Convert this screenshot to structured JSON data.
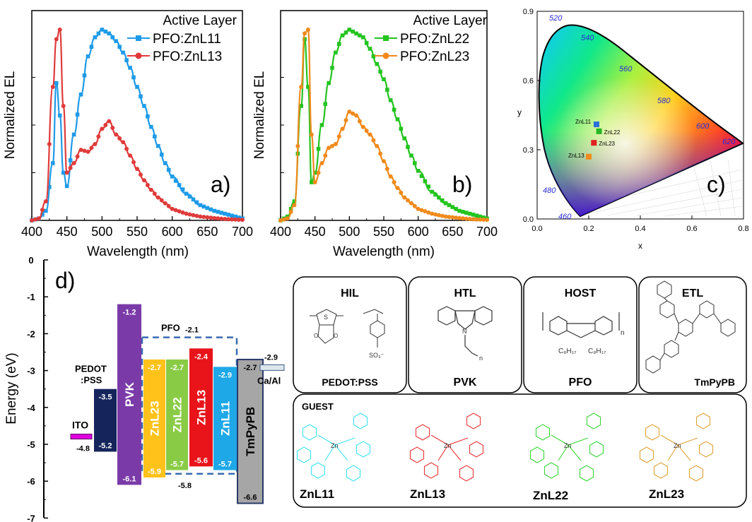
{
  "chart_data": [
    {
      "panel": "a)",
      "type": "line",
      "ylabel": "Normalized EL",
      "xlabel": "Wavelength (nm)",
      "xlim": [
        400,
        700
      ],
      "xticks": [
        "400",
        "450",
        "500",
        "550",
        "600",
        "650",
        "700"
      ],
      "legend_title": "Active Layer",
      "legend_position": "top-right",
      "x": [
        400,
        410,
        420,
        430,
        435,
        440,
        445,
        450,
        460,
        470,
        480,
        490,
        500,
        510,
        520,
        530,
        540,
        550,
        560,
        570,
        580,
        590,
        600,
        620,
        640,
        660,
        680,
        700
      ],
      "series": [
        {
          "name": "PFO:ZnL11",
          "color": "#1e9be8",
          "marker": "square",
          "values": [
            0.0,
            0.01,
            0.05,
            0.3,
            0.72,
            0.55,
            0.25,
            0.18,
            0.45,
            0.66,
            0.86,
            0.96,
            1.0,
            0.98,
            0.94,
            0.88,
            0.8,
            0.7,
            0.6,
            0.49,
            0.39,
            0.3,
            0.23,
            0.14,
            0.08,
            0.05,
            0.03,
            0.01
          ]
        },
        {
          "name": "PFO:ZnL13",
          "color": "#e03b3b",
          "marker": "circle",
          "values": [
            0.0,
            0.01,
            0.1,
            0.7,
            0.95,
            1.0,
            0.6,
            0.25,
            0.3,
            0.37,
            0.36,
            0.4,
            0.48,
            0.52,
            0.45,
            0.41,
            0.34,
            0.27,
            0.21,
            0.16,
            0.12,
            0.09,
            0.06,
            0.035,
            0.02,
            0.012,
            0.006,
            0.003
          ]
        }
      ]
    },
    {
      "panel": "b)",
      "type": "line",
      "ylabel": "Normalized EL",
      "xlabel": "Wavelength (nm)",
      "xlim": [
        400,
        700
      ],
      "xticks": [
        "400",
        "450",
        "500",
        "550",
        "600",
        "650",
        "700"
      ],
      "legend_title": "Active Layer",
      "legend_position": "top-right",
      "x": [
        400,
        410,
        420,
        430,
        435,
        440,
        445,
        450,
        460,
        470,
        480,
        490,
        500,
        510,
        520,
        530,
        540,
        550,
        560,
        570,
        580,
        590,
        600,
        620,
        640,
        660,
        680,
        700
      ],
      "series": [
        {
          "name": "PFO:ZnL22",
          "color": "#23c41f",
          "marker": "square",
          "values": [
            0.0,
            0.02,
            0.1,
            0.6,
            0.95,
            0.7,
            0.2,
            0.25,
            0.5,
            0.72,
            0.88,
            0.97,
            1.0,
            0.98,
            0.96,
            0.9,
            0.82,
            0.74,
            0.63,
            0.53,
            0.43,
            0.34,
            0.26,
            0.15,
            0.09,
            0.05,
            0.03,
            0.01
          ]
        },
        {
          "name": "PFO:ZnL23",
          "color": "#f08a1c",
          "marker": "circle",
          "values": [
            0.0,
            0.01,
            0.08,
            0.7,
            0.98,
            1.0,
            0.45,
            0.2,
            0.3,
            0.38,
            0.4,
            0.48,
            0.57,
            0.55,
            0.49,
            0.45,
            0.39,
            0.31,
            0.23,
            0.17,
            0.12,
            0.09,
            0.06,
            0.035,
            0.02,
            0.012,
            0.006,
            0.003
          ]
        }
      ]
    },
    {
      "panel": "c)",
      "type": "scatter",
      "xlabel": "x",
      "ylabel": "y",
      "xlim": [
        0,
        0.8
      ],
      "ylim": [
        0,
        0.9
      ],
      "xticks": [
        "0.0",
        "0.2",
        "0.4",
        "0.6",
        "0.8"
      ],
      "yticks": [
        "0.0",
        "0.3",
        "0.6",
        "0.9"
      ],
      "wavelength_labels": [
        "460",
        "480",
        "520",
        "540",
        "560",
        "580",
        "600",
        "620"
      ],
      "points": [
        {
          "name": "ZnL11",
          "x": 0.23,
          "y": 0.41,
          "color": "#2a6fdb"
        },
        {
          "name": "ZnL22",
          "x": 0.24,
          "y": 0.38,
          "color": "#26b626"
        },
        {
          "name": "ZnL23",
          "x": 0.22,
          "y": 0.33,
          "color": "#e02020"
        },
        {
          "name": "ZnL13",
          "x": 0.2,
          "y": 0.27,
          "color": "#f08a1c"
        }
      ]
    }
  ],
  "panel_d": {
    "label": "d)",
    "ylabel": "Energy (eV)",
    "yticks": [
      "0",
      "-1",
      "-2",
      "-3",
      "-4",
      "-5",
      "-6",
      "-7"
    ],
    "layers": [
      {
        "name": "ITO",
        "top": "-4.8",
        "bottom": "",
        "color": "#e000e0"
      },
      {
        "name": "PEDOT :PSS",
        "top": "-3.5",
        "bottom": "-5.2",
        "color": "#15255c"
      },
      {
        "name": "PVK",
        "top": "-1.2",
        "bottom": "-6.1",
        "color": "#7a3aa8"
      },
      {
        "name": "ZnL23",
        "top": "-2.7",
        "bottom": "-5.9",
        "color": "#ffc21a"
      },
      {
        "name": "ZnL22",
        "top": "-2.7",
        "bottom": "-5.7",
        "color": "#8acb46"
      },
      {
        "name": "ZnL13",
        "top": "-2.4",
        "bottom": "-5.6",
        "color": "#e8141a"
      },
      {
        "name": "ZnL11",
        "top": "-2.9",
        "bottom": "-5.7",
        "color": "#1ea8e8"
      },
      {
        "name": "TmPyPB",
        "top": "-2.7",
        "bottom": "-6.6",
        "color": "#a6a6a6"
      },
      {
        "name": "Ca/Al",
        "top": "-2.9",
        "bottom": "",
        "color": "#dce6ee"
      }
    ],
    "pfo": {
      "name": "PFO",
      "lumo": "-2.1",
      "homo": "-5.8"
    },
    "materials": [
      {
        "header": "HIL",
        "name": "PEDOT:PSS"
      },
      {
        "header": "HTL",
        "name": "PVK"
      },
      {
        "header": "HOST",
        "name": "PFO"
      },
      {
        "header": "ETL",
        "name": "TmPyPB"
      }
    ],
    "guest": {
      "header": "GUEST",
      "items": [
        {
          "name": "ZnL11",
          "color": "#3fe0f0"
        },
        {
          "name": "ZnL13",
          "color": "#e83535"
        },
        {
          "name": "ZnL22",
          "color": "#39d639"
        },
        {
          "name": "ZnL23",
          "color": "#e0a23a"
        }
      ]
    }
  }
}
